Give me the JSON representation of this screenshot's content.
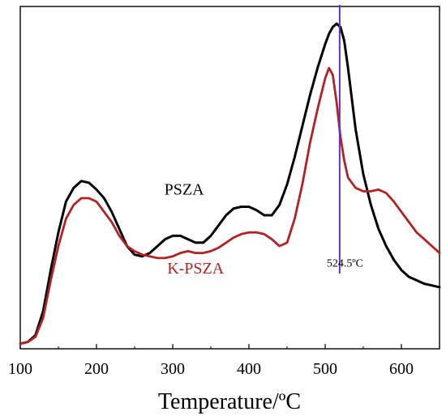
{
  "chart_data": {
    "type": "line",
    "xlabel": "Temperature/ºC",
    "ylabel": "",
    "xlim": [
      100,
      650
    ],
    "ylim": [
      0,
      100
    ],
    "xticks": [
      100,
      200,
      300,
      400,
      500,
      600
    ],
    "y_ticks_labeled": false,
    "grid": false,
    "legend": "none",
    "series": [
      {
        "name": "PSZA",
        "color": "#000000",
        "x": [
          100,
          110,
          120,
          130,
          140,
          150,
          160,
          170,
          180,
          190,
          200,
          210,
          220,
          230,
          240,
          250,
          260,
          270,
          280,
          290,
          300,
          310,
          320,
          330,
          340,
          350,
          360,
          370,
          380,
          390,
          400,
          410,
          420,
          430,
          440,
          450,
          460,
          470,
          480,
          490,
          500,
          505,
          510,
          515,
          520,
          525,
          530,
          540,
          550,
          560,
          570,
          580,
          590,
          600,
          610,
          620,
          630,
          640,
          650
        ],
        "y": [
          1.5,
          2,
          4,
          11,
          23,
          34,
          43,
          47,
          49,
          48.5,
          46.5,
          44,
          40,
          35,
          30,
          27.5,
          27,
          28,
          30,
          32,
          33,
          33,
          32,
          31,
          31,
          33,
          36,
          39,
          41,
          41.5,
          41.5,
          40.5,
          39,
          39,
          42,
          48,
          56,
          65,
          74,
          82,
          89,
          92,
          94,
          95,
          94,
          90,
          82,
          64,
          51,
          42,
          35,
          30,
          26,
          23,
          21,
          20,
          19,
          18.5,
          18
        ]
      },
      {
        "name": "K-PSZA",
        "color": "#b22222",
        "x": [
          100,
          110,
          120,
          130,
          140,
          150,
          160,
          170,
          180,
          190,
          200,
          210,
          220,
          230,
          240,
          250,
          260,
          270,
          280,
          290,
          300,
          310,
          320,
          330,
          340,
          350,
          360,
          370,
          380,
          390,
          400,
          410,
          420,
          430,
          440,
          450,
          460,
          470,
          480,
          490,
          500,
          505,
          510,
          515,
          520,
          525,
          530,
          540,
          550,
          560,
          570,
          580,
          590,
          600,
          610,
          620,
          630,
          640,
          650
        ],
        "y": [
          1.5,
          2,
          3.5,
          9,
          20,
          30,
          38,
          42,
          44,
          44,
          43,
          40,
          37,
          33,
          30,
          28.5,
          27.5,
          27,
          26.5,
          26.5,
          27,
          28,
          28.5,
          28,
          28,
          28.5,
          29.5,
          31,
          32.5,
          33.5,
          34,
          34,
          33.5,
          32,
          30,
          31,
          38,
          48,
          60,
          70,
          79,
          82,
          80,
          72,
          62,
          55,
          50,
          47,
          46,
          46,
          46.5,
          45.5,
          43,
          40,
          37,
          34,
          32,
          30,
          28
        ]
      }
    ],
    "annotations": [
      {
        "text": "PSZA",
        "x": 315,
        "y": 45,
        "color": "#000000",
        "size": "large"
      },
      {
        "text": "K-PSZA",
        "x": 330,
        "y": 22,
        "color": "#b22222",
        "size": "large"
      },
      {
        "text": "524.5ºC",
        "x": 526,
        "y": 24,
        "color": "#000000",
        "size": "small"
      }
    ],
    "vline": {
      "x": 519,
      "y_from": 22,
      "y_to": 100,
      "color": "#6a2ec8"
    }
  }
}
